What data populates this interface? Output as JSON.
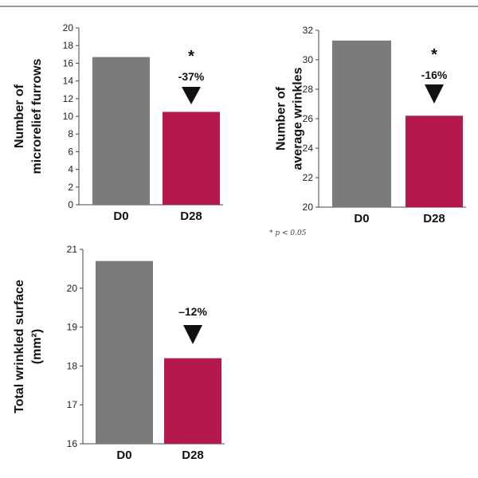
{
  "colors": {
    "d0": "#7b7b7b",
    "d28": "#b5174f",
    "axis": "#444444",
    "rule": "#9a9a9a"
  },
  "footnote": "* p < 0.05",
  "chart_data": [
    {
      "type": "bar",
      "categories": [
        "D0",
        "D28"
      ],
      "values": [
        16.7,
        10.5
      ],
      "ylabel": [
        "Number of",
        "microrelief furrows"
      ],
      "ylim": [
        0,
        20
      ],
      "yticks": [
        0,
        2,
        4,
        6,
        8,
        10,
        12,
        14,
        16,
        18,
        20
      ],
      "annotation": {
        "star": "*",
        "change": "-37%",
        "arrow": "down-triangle"
      }
    },
    {
      "type": "bar",
      "categories": [
        "D0",
        "D28"
      ],
      "values": [
        31.3,
        26.2
      ],
      "ylabel": [
        "Number of",
        "average wrinkles"
      ],
      "ylim": [
        20,
        32
      ],
      "yticks": [
        20,
        22,
        24,
        26,
        28,
        30,
        32
      ],
      "annotation": {
        "star": "*",
        "change": "-16%",
        "arrow": "down-triangle"
      }
    },
    {
      "type": "bar",
      "categories": [
        "D0",
        "D28"
      ],
      "values": [
        20.7,
        18.2
      ],
      "ylabel": [
        "Total wrinkled surface",
        "(mm²)"
      ],
      "ylim": [
        16,
        21
      ],
      "yticks": [
        16,
        17,
        18,
        19,
        20,
        21
      ],
      "annotation": {
        "star": "",
        "change": "–12%",
        "arrow": "down-triangle"
      }
    }
  ]
}
